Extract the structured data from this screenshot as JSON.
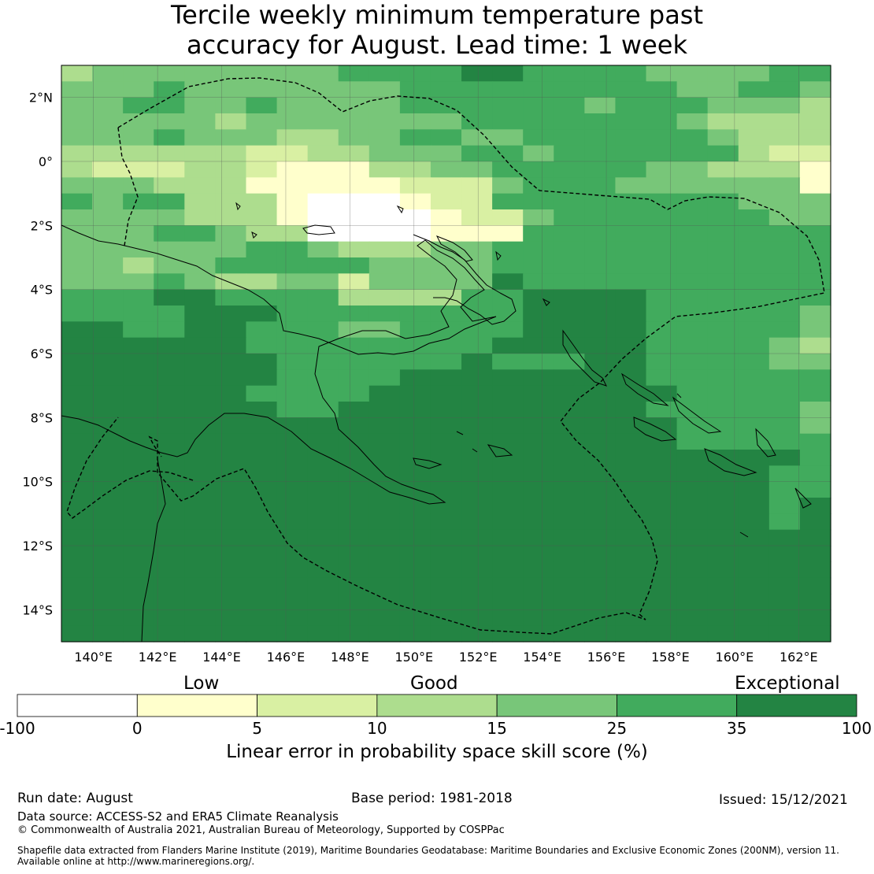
{
  "title": {
    "line1": "Tercile weekly minimum temperature past",
    "line2": "accuracy for August. Lead time: 1 week"
  },
  "map": {
    "extent": {
      "lon_min": 139,
      "lon_max": 163,
      "lat_min": -15,
      "lat_max": 3
    },
    "lat_ticks": [
      {
        "lat": 2,
        "label": "2°N"
      },
      {
        "lat": 0,
        "label": "0°"
      },
      {
        "lat": -2,
        "label": "2°S"
      },
      {
        "lat": -4,
        "label": "4°S"
      },
      {
        "lat": -6,
        "label": "6°S"
      },
      {
        "lat": -8,
        "label": "8°S"
      },
      {
        "lat": -10,
        "label": "10°S"
      },
      {
        "lat": -12,
        "label": "12°S"
      },
      {
        "lat": -14,
        "label": "14°S"
      }
    ],
    "lon_ticks": [
      {
        "lon": 140,
        "label": "140°E"
      },
      {
        "lon": 142,
        "label": "142°E"
      },
      {
        "lon": 144,
        "label": "144°E"
      },
      {
        "lon": 146,
        "label": "146°E"
      },
      {
        "lon": 148,
        "label": "148°E"
      },
      {
        "lon": 150,
        "label": "150°E"
      },
      {
        "lon": 152,
        "label": "152°E"
      },
      {
        "lon": 154,
        "label": "154°E"
      },
      {
        "lon": 156,
        "label": "156°E"
      },
      {
        "lon": 158,
        "label": "158°E"
      },
      {
        "lon": 160,
        "label": "160°E"
      },
      {
        "lon": 162,
        "label": "162°E"
      }
    ],
    "class_rows_north_to_south": [
      "3444444445555665555444455",
      "4445444444455555555544554",
      "4455445444455555545554443",
      "4444434444444555555543333",
      "4445444334455445555554333",
      "3333332233444554555555322",
      "3222332111334455555443331",
      "4443331111122245554444441",
      "5455333100012255555555444",
      "4444333100001224555555544",
      "4445543300001115555555555",
      "4444445543334455555555555",
      "4434455555444455555555555",
      "4445433442444465555555555",
      "5556655553333556666555555",
      "5555666555555556666555554",
      "6655665554455556666555554",
      "6666665555555566666555543",
      "6666666555555655566555544",
      "6666666555566666666555555",
      "6666665555666666666655555",
      "6666666556666666666555554",
      "6666666666666666666655554",
      "6666666666666666666655555",
      "6666666666666666666666665",
      "6666666666666666666666655",
      "6666666666666666666666655",
      "6666666666666666666666656",
      "6666666666666666666666656",
      "6666666666666666666666666",
      "6666666666666666666666666",
      "6666666666666666666666666",
      "6666666666666666666666666",
      "6666666666666666666666666",
      "6666666666666666666666666",
      "6666666666666666666666666"
    ]
  },
  "colorbar": {
    "colors": [
      "#ffffff",
      "#ffffcc",
      "#d9f0a3",
      "#addd8e",
      "#78c679",
      "#41ab5d",
      "#238443"
    ],
    "ticks": [
      "-100",
      "0",
      "5",
      "10",
      "15",
      "25",
      "35",
      "100"
    ],
    "category_low": "Low",
    "category_good": "Good",
    "category_exceptional": "Exceptional",
    "label": "Linear error in probability space skill score (%)"
  },
  "footer": {
    "run_date": "Run date: August",
    "base_period": "Base period: 1981-2018",
    "issued": "Issued: 15/12/2021",
    "data_source": "Data source: ACCESS-S2 and ERA5 Climate Reanalysis",
    "copyright": "© Commonwealth of Australia 2021, Australian Bureau of Meteorology, Supported by COSPPac",
    "shapefile_line1": "Shapefile data extracted from Flanders Marine Institute (2019), Maritime Boundaries Geodatabase: Maritime Boundaries and Exclusive Economic Zones (200NM), version 11.",
    "shapefile_line2": "Available online at http://www.marineregions.org/."
  }
}
